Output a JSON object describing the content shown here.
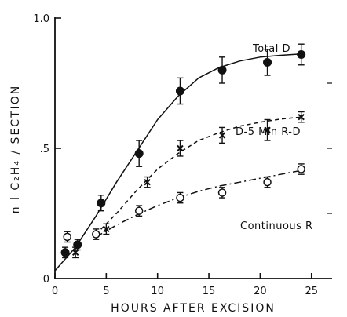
{
  "chart_data": {
    "type": "scatter",
    "title": "",
    "xlabel": "HOURS AFTER EXCISION",
    "ylabel": "n l C₂H₄ / SECTION",
    "xlim": [
      0,
      26
    ],
    "ylim": [
      0,
      1.0
    ],
    "xticks": [
      0,
      5,
      10,
      15,
      20,
      25
    ],
    "xtick_labels": [
      "0",
      "5",
      "10",
      "15",
      "20",
      "25"
    ],
    "yticks": [
      0,
      0.5,
      1.0
    ],
    "ytick_labels": [
      "0",
      ".5",
      "1.0"
    ],
    "grid": false,
    "series": [
      {
        "name": "Total D",
        "marker": "filled-circle",
        "line": "solid",
        "x": [
          1,
          2.2,
          4.5,
          8.2,
          12.2,
          16.3,
          20.7,
          24
        ],
        "y": [
          0.1,
          0.13,
          0.29,
          0.48,
          0.72,
          0.8,
          0.83,
          0.86
        ],
        "err": [
          0.02,
          0.02,
          0.03,
          0.05,
          0.05,
          0.05,
          0.05,
          0.04
        ],
        "curve_x": [
          0,
          2,
          4,
          6,
          8,
          10,
          12,
          14,
          16,
          18,
          20,
          22,
          24
        ],
        "curve_y": [
          0.03,
          0.12,
          0.24,
          0.37,
          0.49,
          0.61,
          0.7,
          0.77,
          0.81,
          0.835,
          0.85,
          0.857,
          0.862
        ]
      },
      {
        "name": "D-5 Min R-D",
        "marker": "x",
        "line": "dashed",
        "x": [
          2,
          5,
          9,
          12.2,
          16.3,
          20.7,
          24
        ],
        "y": [
          0.1,
          0.19,
          0.37,
          0.5,
          0.55,
          0.57,
          0.62
        ],
        "err": [
          0.02,
          0.02,
          0.02,
          0.03,
          0.03,
          0.04,
          0.02
        ],
        "curve_x": [
          4,
          6,
          8,
          10,
          12,
          14,
          16,
          18,
          20,
          22,
          24
        ],
        "curve_y": [
          0.17,
          0.25,
          0.34,
          0.42,
          0.48,
          0.53,
          0.56,
          0.585,
          0.6,
          0.612,
          0.62
        ]
      },
      {
        "name": "Continuous R",
        "marker": "open-circle",
        "line": "dash-dot",
        "x": [
          1.2,
          4,
          8.2,
          12.2,
          16.3,
          20.7,
          24
        ],
        "y": [
          0.16,
          0.17,
          0.26,
          0.31,
          0.33,
          0.37,
          0.42
        ],
        "err": [
          0.02,
          0.02,
          0.02,
          0.02,
          0.02,
          0.02,
          0.02
        ],
        "curve_x": [
          4,
          6,
          8,
          10,
          12,
          14,
          16,
          18,
          20,
          22,
          24
        ],
        "curve_y": [
          0.16,
          0.205,
          0.245,
          0.28,
          0.31,
          0.335,
          0.355,
          0.37,
          0.385,
          0.4,
          0.415
        ]
      }
    ],
    "annotations": [
      "Total D",
      "D-5 Min R-D",
      "Continuous R"
    ]
  }
}
